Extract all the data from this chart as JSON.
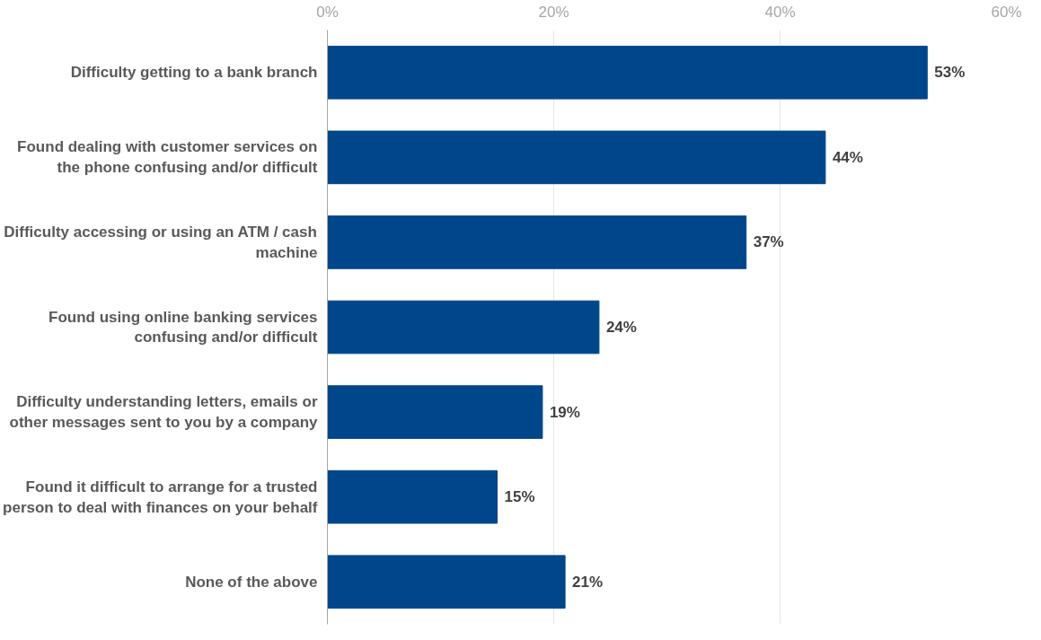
{
  "chart_data": {
    "type": "bar",
    "orientation": "horizontal",
    "categories": [
      "Difficulty getting to a bank branch",
      "Found dealing with customer services on\nthe phone confusing and/or difficult",
      "Difficulty accessing or using an ATM / cash\nmachine",
      "Found using online banking services\nconfusing and/or difficult",
      "Difficulty understanding letters, emails or\nother messages sent to you by a company",
      "Found it difficult to arrange for a trusted\nperson to deal with finances on your behalf",
      "None of the above"
    ],
    "values": [
      53,
      44,
      37,
      24,
      19,
      15,
      21
    ],
    "value_labels": [
      "53%",
      "44%",
      "37%",
      "24%",
      "19%",
      "15%",
      "21%"
    ],
    "color": "#00468b",
    "xlim": [
      0,
      60
    ],
    "xticks": [
      {
        "value": 0,
        "label": "0%"
      },
      {
        "value": 20,
        "label": "20%"
      },
      {
        "value": 40,
        "label": "40%"
      },
      {
        "value": 60,
        "label": "60%"
      }
    ],
    "grid": "x"
  }
}
